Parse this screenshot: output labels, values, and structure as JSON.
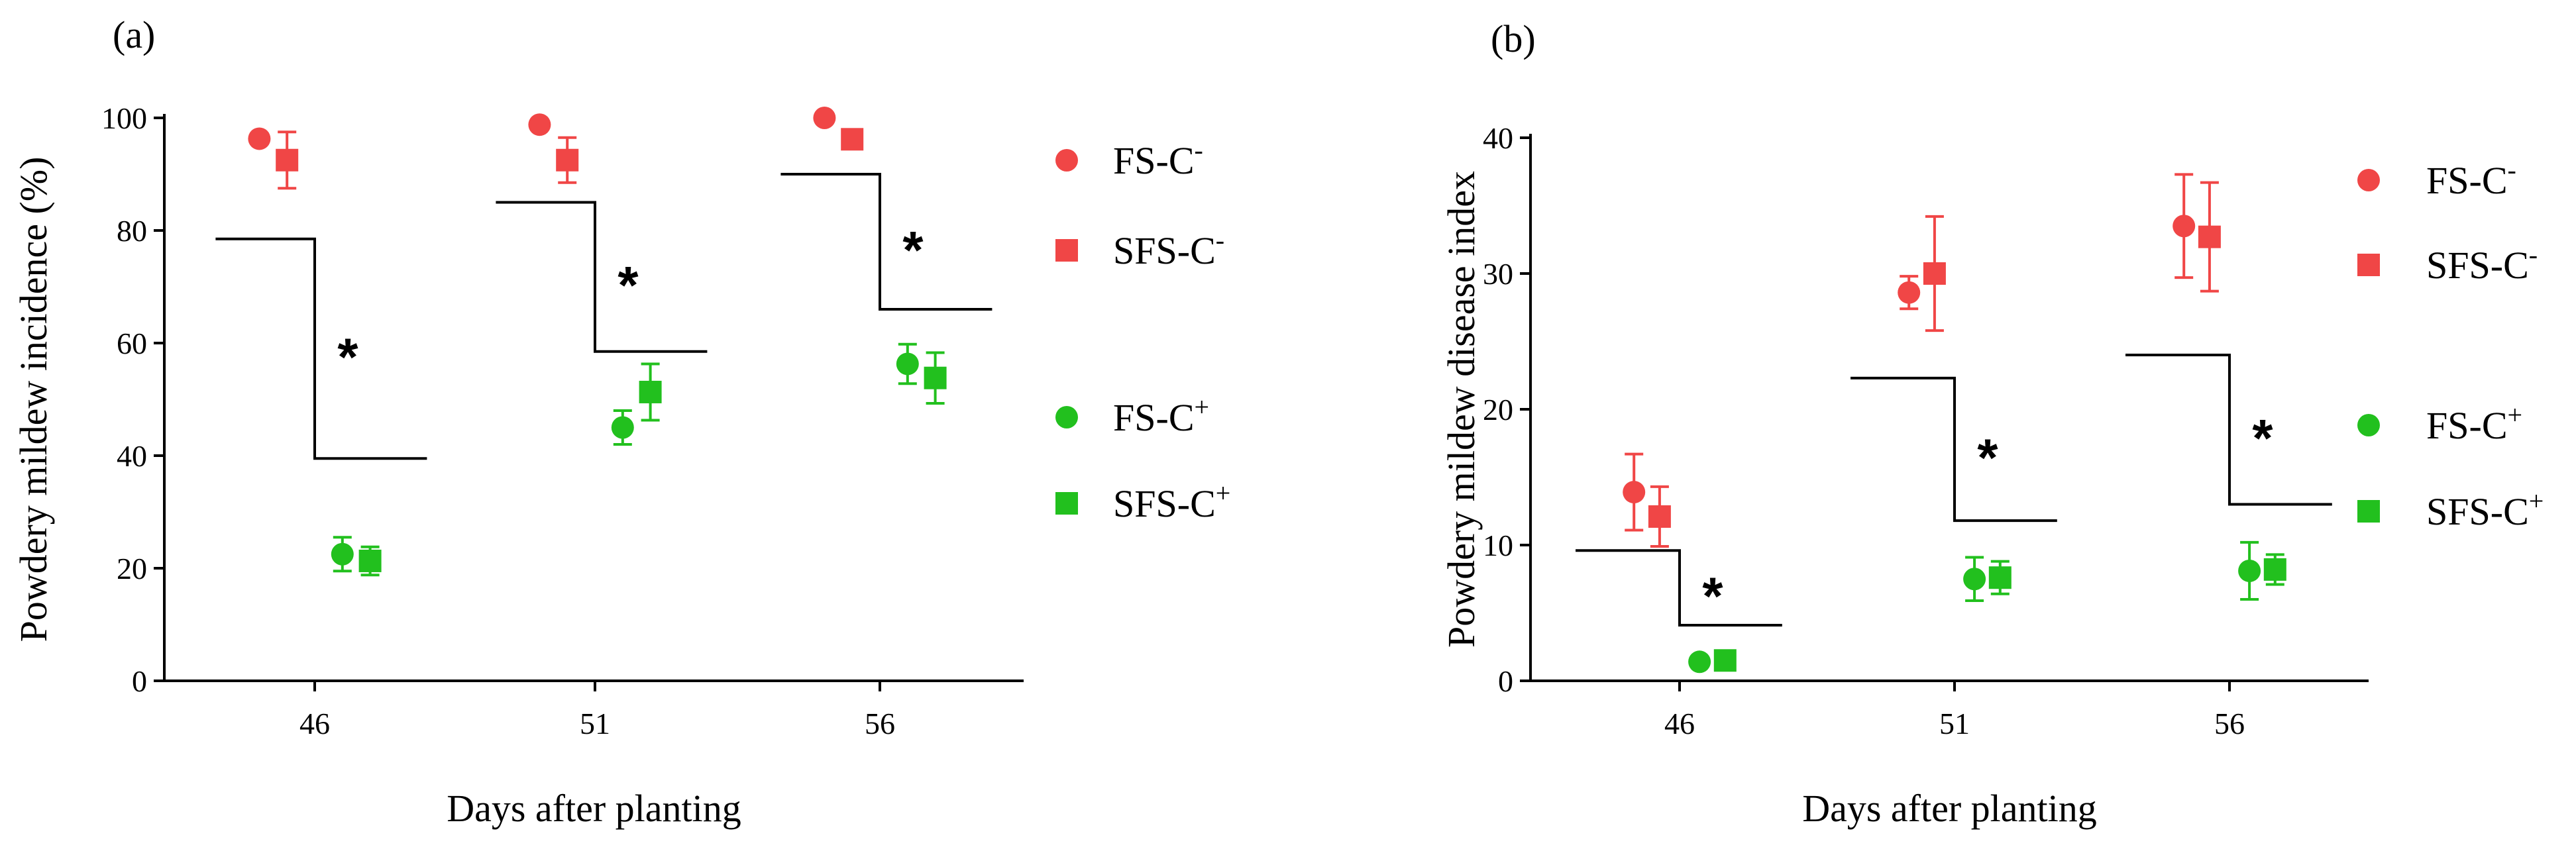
{
  "colors": {
    "red": "#f04646",
    "green": "#22c01e",
    "axis": "#000000"
  },
  "chart_data": [
    {
      "panel_label": "(a)",
      "type": "scatter",
      "xlabel": "Days after planting",
      "ylabel": "Powdery mildew incidence (%)",
      "ylim": [
        0,
        100
      ],
      "yticks": [
        0,
        20,
        40,
        60,
        80,
        100
      ],
      "categories": [
        "46",
        "51",
        "56"
      ],
      "series": [
        {
          "name": "FS-C-",
          "color": "red",
          "marker": "circle",
          "offset": -0.38,
          "values": [
            96.3,
            98.8,
            100
          ],
          "errors": [
            0,
            0.5,
            0
          ]
        },
        {
          "name": "SFS-C-",
          "color": "red",
          "marker": "square",
          "offset": -0.19,
          "values": [
            92.5,
            92.5,
            96.2
          ],
          "errors": [
            5,
            4,
            0
          ]
        },
        {
          "name": "FS-C+",
          "color": "green",
          "marker": "circle",
          "offset": 0.19,
          "values": [
            22.5,
            45,
            56.3
          ],
          "errors": [
            3,
            3,
            3.5
          ]
        },
        {
          "name": "SFS-C+",
          "color": "green",
          "marker": "square",
          "offset": 0.38,
          "values": [
            21.3,
            51.3,
            53.8
          ],
          "errors": [
            2.5,
            5,
            4.5
          ]
        }
      ],
      "significance": [
        {
          "category_index": 0,
          "high": 78.5,
          "low": 39.5,
          "label": "*"
        },
        {
          "category_index": 1,
          "high": 85,
          "low": 58.5,
          "label": "*"
        },
        {
          "category_index": 2,
          "high": 90,
          "low": 66,
          "label": "*"
        }
      ]
    },
    {
      "panel_label": "(b)",
      "type": "scatter",
      "xlabel": "Days after planting",
      "ylabel": "Powdery mildew disease index",
      "ylim": [
        0,
        40
      ],
      "yticks": [
        0,
        10,
        20,
        30,
        40
      ],
      "categories": [
        "46",
        "51",
        "56"
      ],
      "series": [
        {
          "name": "FS-C-",
          "color": "red",
          "marker": "circle",
          "offset": -0.32,
          "values": [
            13.9,
            28.6,
            33.5
          ],
          "errors": [
            2.8,
            1.2,
            3.8
          ]
        },
        {
          "name": "SFS-C-",
          "color": "red",
          "marker": "square",
          "offset": -0.14,
          "values": [
            12.1,
            30,
            32.7
          ],
          "errors": [
            2.2,
            4.2,
            4
          ]
        },
        {
          "name": "FS-C+",
          "color": "green",
          "marker": "circle",
          "offset": 0.14,
          "values": [
            1.4,
            7.5,
            8.1
          ],
          "errors": [
            0,
            1.6,
            2.1
          ]
        },
        {
          "name": "SFS-C+",
          "color": "green",
          "marker": "square",
          "offset": 0.32,
          "values": [
            1.5,
            7.6,
            8.2
          ],
          "errors": [
            0,
            1.2,
            1.1
          ]
        }
      ],
      "significance": [
        {
          "category_index": 0,
          "high": 9.6,
          "low": 4.1,
          "label": "*"
        },
        {
          "category_index": 1,
          "high": 22.3,
          "low": 11.8,
          "label": "*"
        },
        {
          "category_index": 2,
          "high": 24,
          "low": 13,
          "label": "*"
        }
      ]
    }
  ],
  "legend": [
    {
      "base": "FS-C",
      "sup": "-",
      "color": "red",
      "marker": "circle"
    },
    {
      "base": "SFS-C",
      "sup": "-",
      "color": "red",
      "marker": "square"
    },
    {
      "base": "FS-C",
      "sup": "+",
      "color": "green",
      "marker": "circle"
    },
    {
      "base": "SFS-C",
      "sup": "+",
      "color": "green",
      "marker": "square"
    }
  ]
}
